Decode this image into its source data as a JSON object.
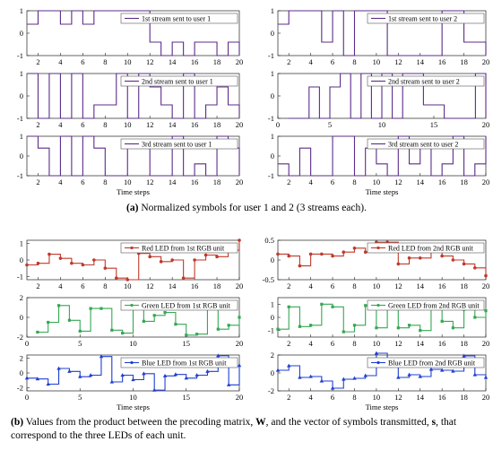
{
  "chart_data": [
    {
      "type": "line",
      "panel": "symbols-user1-stream1",
      "legend": "1st stream sent to user 1",
      "color": "#5b2c8a",
      "marker": "none",
      "x": [
        1,
        2,
        3,
        4,
        5,
        6,
        7,
        8,
        9,
        10,
        11,
        12,
        13,
        14,
        15,
        16,
        17,
        18,
        19,
        20
      ],
      "values": [
        0.4,
        1,
        1,
        0.4,
        1,
        0.4,
        1,
        1,
        1,
        1,
        1,
        -0.4,
        -1,
        -0.4,
        -1,
        -0.4,
        -0.4,
        -1,
        -0.4,
        -1
      ],
      "ylim": [
        -1,
        1
      ],
      "yticks": [
        -1,
        0,
        1
      ],
      "xlim": [
        1,
        20
      ],
      "xticks": [
        2,
        4,
        6,
        8,
        10,
        12,
        14,
        16,
        18,
        20
      ],
      "xlabel": ""
    },
    {
      "type": "line",
      "panel": "symbols-user2-stream1",
      "legend": "1st stream sent to user 2",
      "color": "#5b2c8a",
      "marker": "none",
      "x": [
        1,
        2,
        3,
        4,
        5,
        6,
        7,
        8,
        9,
        10,
        11,
        12,
        13,
        14,
        15,
        16,
        17,
        18,
        19,
        20
      ],
      "values": [
        0.4,
        1,
        1,
        1,
        -0.4,
        1,
        -1,
        1,
        1,
        1,
        -1,
        -1,
        -1,
        -1,
        -1,
        1,
        1,
        -0.4,
        -0.4,
        -1
      ],
      "ylim": [
        -1,
        1
      ],
      "yticks": [
        -1,
        0,
        1
      ],
      "xlim": [
        1,
        20
      ],
      "xticks": [
        2,
        4,
        6,
        8,
        10,
        12,
        14,
        16,
        18,
        20
      ],
      "xlabel": ""
    },
    {
      "type": "line",
      "panel": "symbols-user1-stream2",
      "legend": "2nd stream sent to user 1",
      "color": "#5b2c8a",
      "marker": "none",
      "x": [
        1,
        2,
        3,
        4,
        5,
        6,
        7,
        8,
        9,
        10,
        11,
        12,
        13,
        14,
        15,
        16,
        17,
        18,
        19,
        20
      ],
      "values": [
        1,
        -1,
        1,
        -1,
        1,
        -1,
        -0.4,
        -0.4,
        1,
        -1,
        1,
        0.4,
        -0.4,
        -1,
        1,
        -1,
        -0.4,
        0.4,
        -0.4,
        -1
      ],
      "ylim": [
        -1,
        1
      ],
      "yticks": [
        -1,
        0,
        1
      ],
      "xlim": [
        1,
        20
      ],
      "xticks": [
        2,
        4,
        6,
        8,
        10,
        12,
        14,
        16,
        18,
        20
      ],
      "xlabel": ""
    },
    {
      "type": "line",
      "panel": "symbols-user2-stream2",
      "legend": "2nd stream sent to user 2",
      "color": "#5b2c8a",
      "marker": "none",
      "x": [
        1,
        2,
        3,
        4,
        5,
        6,
        7,
        8,
        9,
        10,
        11,
        12,
        13,
        14,
        15,
        16,
        17,
        18,
        19,
        20
      ],
      "values": [
        -1,
        -1,
        0.4,
        -1,
        0.4,
        1,
        -1,
        1,
        -1,
        1,
        -1,
        1,
        1,
        -0.4,
        -0.4,
        -1,
        -1,
        -1,
        1,
        -1
      ],
      "ylim": [
        -1,
        1
      ],
      "yticks": [
        -1,
        0,
        1
      ],
      "xlim": [
        0,
        20
      ],
      "xticks": [
        0,
        5,
        10,
        15,
        20
      ],
      "xlabel": ""
    },
    {
      "type": "line",
      "panel": "symbols-user1-stream3",
      "legend": "3rd stream sent to user 1",
      "color": "#5b2c8a",
      "marker": "none",
      "x": [
        1,
        2,
        3,
        4,
        5,
        6,
        7,
        8,
        9,
        10,
        11,
        12,
        13,
        14,
        15,
        16,
        17,
        18,
        19,
        20
      ],
      "values": [
        1,
        0.4,
        -1,
        1,
        -1,
        1,
        0.4,
        -1,
        -1,
        0.4,
        0.4,
        -1,
        -1,
        1,
        -1,
        -0.4,
        -1,
        1,
        0.4,
        -1
      ],
      "ylim": [
        -1,
        1
      ],
      "yticks": [
        -1,
        0,
        1
      ],
      "xlim": [
        1,
        20
      ],
      "xticks": [
        2,
        4,
        6,
        8,
        10,
        12,
        14,
        16,
        18,
        20
      ],
      "xlabel": "Time steps"
    },
    {
      "type": "line",
      "panel": "symbols-user2-stream3",
      "legend": "3rd stream sent to user 2",
      "color": "#5b2c8a",
      "marker": "none",
      "x": [
        1,
        2,
        3,
        4,
        5,
        6,
        7,
        8,
        9,
        10,
        11,
        12,
        13,
        14,
        15,
        16,
        17,
        18,
        19,
        20
      ],
      "values": [
        -0.4,
        -1,
        0.4,
        -1,
        -1,
        1,
        1,
        -1,
        0.4,
        -0.4,
        -1,
        1,
        -0.4,
        0.4,
        -1,
        -0.4,
        1,
        -1,
        -0.4,
        1
      ],
      "ylim": [
        -1,
        1
      ],
      "yticks": [
        -1,
        0,
        1
      ],
      "xlim": [
        1,
        20
      ],
      "xticks": [
        2,
        4,
        6,
        8,
        10,
        12,
        14,
        16,
        18,
        20
      ],
      "xlabel": "Time steps"
    },
    {
      "type": "line",
      "panel": "red-led-unit1",
      "legend": "Red LED from 1st RGB unit",
      "color": "#c0392b",
      "marker": "circle",
      "x": [
        1,
        2,
        3,
        4,
        5,
        6,
        7,
        8,
        9,
        10,
        11,
        12,
        13,
        14,
        15,
        16,
        17,
        18,
        19,
        20
      ],
      "values": [
        -0.3,
        -0.2,
        0.35,
        0.1,
        -0.2,
        -0.3,
        0.0,
        -0.5,
        -1.1,
        -1.2,
        0.4,
        0.2,
        -0.1,
        0.0,
        -1.1,
        0.0,
        0.3,
        0.2,
        0.6,
        1.2
      ],
      "ylim": [
        -1.2,
        1.2
      ],
      "yticks": [
        -1,
        0,
        1
      ],
      "xlim": [
        1,
        20
      ],
      "xticks": [
        2,
        4,
        6,
        8,
        10,
        12,
        14,
        16,
        18,
        20
      ],
      "xlabel": ""
    },
    {
      "type": "line",
      "panel": "red-led-unit2",
      "legend": "Red LED from 2nd RGB unit",
      "color": "#c0392b",
      "marker": "circle",
      "x": [
        1,
        2,
        3,
        4,
        5,
        6,
        7,
        8,
        9,
        10,
        11,
        12,
        13,
        14,
        15,
        16,
        17,
        18,
        19,
        20
      ],
      "values": [
        0.15,
        0.1,
        -0.15,
        0.15,
        0.15,
        0.1,
        0.2,
        0.3,
        0.2,
        0.45,
        0.45,
        -0.1,
        0.05,
        0.05,
        0.35,
        0.1,
        0.0,
        -0.1,
        -0.2,
        -0.4
      ],
      "ylim": [
        -0.5,
        0.5
      ],
      "yticks": [
        -0.5,
        0,
        0.5
      ],
      "xlim": [
        1,
        20
      ],
      "xticks": [
        2,
        4,
        6,
        8,
        10,
        12,
        14,
        16,
        18,
        20
      ],
      "xlabel": ""
    },
    {
      "type": "line",
      "panel": "green-led-unit1",
      "legend": "Green LED from 1st RGB unit",
      "color": "#34a853",
      "marker": "square",
      "x": [
        1,
        2,
        3,
        4,
        5,
        6,
        7,
        8,
        9,
        10,
        11,
        12,
        13,
        14,
        15,
        16,
        17,
        18,
        19,
        20
      ],
      "values": [
        -1.5,
        -0.5,
        1.2,
        -0.3,
        -1.4,
        0.9,
        0.9,
        -1.3,
        -1.6,
        1.6,
        -0.4,
        0.2,
        0.5,
        -0.7,
        -1.8,
        -1.7,
        1.3,
        -1.2,
        -0.8,
        0.0
      ],
      "ylim": [
        -2,
        2
      ],
      "yticks": [
        -2,
        0,
        2
      ],
      "xlim": [
        0,
        20
      ],
      "xticks": [
        0,
        5,
        10,
        15,
        20
      ],
      "xlabel": ""
    },
    {
      "type": "line",
      "panel": "green-led-unit2",
      "legend": "Green LED from 2nd RGB unit",
      "color": "#34a853",
      "marker": "square",
      "x": [
        1,
        2,
        3,
        4,
        5,
        6,
        7,
        8,
        9,
        10,
        11,
        12,
        13,
        14,
        15,
        16,
        17,
        18,
        19,
        20
      ],
      "values": [
        -0.9,
        0.8,
        -0.7,
        -0.6,
        1.0,
        0.8,
        -1.1,
        -0.6,
        0.9,
        -0.8,
        0.9,
        -0.8,
        -0.6,
        -1.0,
        0.8,
        -0.3,
        -0.8,
        0.6,
        0.0,
        0.5
      ],
      "ylim": [
        -1.5,
        1.5
      ],
      "yticks": [
        -1,
        0,
        1
      ],
      "xlim": [
        1,
        20
      ],
      "xticks": [
        2,
        4,
        6,
        8,
        10,
        12,
        14,
        16,
        18,
        20
      ],
      "xlabel": ""
    },
    {
      "type": "line",
      "panel": "blue-led-unit1",
      "legend": "Blue LED from 1st RGB unit",
      "color": "#1f3fd0",
      "marker": "triangle",
      "x": [
        0,
        1,
        2,
        3,
        4,
        5,
        6,
        7,
        8,
        9,
        10,
        11,
        12,
        13,
        14,
        15,
        16,
        17,
        18,
        19,
        20
      ],
      "values": [
        -0.7,
        -0.8,
        -1.5,
        0.6,
        0.2,
        -0.5,
        -0.3,
        2.2,
        -1.2,
        -0.3,
        -0.9,
        -0.1,
        -2.3,
        -0.4,
        -0.2,
        -0.7,
        -0.3,
        0.2,
        2.3,
        -1.6,
        1.0
      ],
      "ylim": [
        -2.4,
        2.4
      ],
      "yticks": [
        -2,
        0,
        2
      ],
      "xlim": [
        0,
        20
      ],
      "xticks": [
        0,
        5,
        10,
        15,
        20
      ],
      "xlabel": "Time steps"
    },
    {
      "type": "line",
      "panel": "blue-led-unit2",
      "legend": "Blue LED from 2nd RGB unit",
      "color": "#1f3fd0",
      "marker": "triangle",
      "x": [
        1,
        2,
        3,
        4,
        5,
        6,
        7,
        8,
        9,
        10,
        11,
        12,
        13,
        14,
        15,
        16,
        17,
        18,
        19,
        20
      ],
      "values": [
        0.3,
        0.8,
        -0.5,
        -0.4,
        -0.9,
        -1.7,
        -0.7,
        -0.6,
        -0.3,
        2.2,
        1.5,
        -0.5,
        -0.2,
        -0.4,
        0.4,
        0.3,
        0.2,
        1.9,
        -0.2,
        -0.5
      ],
      "ylim": [
        -2,
        2
      ],
      "yticks": [
        -2,
        0,
        2
      ],
      "xlim": [
        1,
        20
      ],
      "xticks": [
        2,
        4,
        6,
        8,
        10,
        12,
        14,
        16,
        18,
        20
      ],
      "xlabel": "Time steps"
    }
  ],
  "captions": {
    "a_label": "(a)",
    "a_text": " Normalized symbols for user 1 and 2 (3 streams each).",
    "b_label": "(b)",
    "b_text_1": " Values from the product between the precoding matrix, ",
    "b_bold_w": "W",
    "b_text_2": ", and the vector of symbols transmitted, ",
    "b_bold_s": "s",
    "b_text_3": ", that correspond to the three LEDs of each unit."
  }
}
